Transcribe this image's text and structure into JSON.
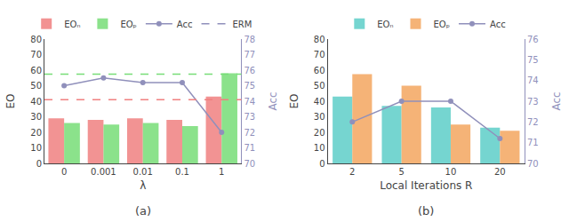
{
  "chart_data": [
    {
      "type": "bar",
      "title": "(a)",
      "x_label": "λ",
      "y_label": "EO",
      "y2_label": "Acc",
      "categories": [
        "0",
        "0.001",
        "0.01",
        "0.1",
        "1"
      ],
      "series": [
        {
          "name": "EOₙ",
          "color": "#f08080",
          "values": [
            29,
            28,
            29,
            28,
            43
          ]
        },
        {
          "name": "EOₚ",
          "color": "#77dd77",
          "values": [
            26,
            25,
            26,
            24,
            58
          ]
        },
        {
          "name": "Acc",
          "type": "line",
          "axis": "y2",
          "color": "#9090bb",
          "marker": "circle",
          "values": [
            75.0,
            75.5,
            75.2,
            75.2,
            72.0
          ]
        }
      ],
      "reference_lines": {
        "name": "ERM",
        "color": "#9090bb",
        "line_style": "dashed",
        "lines": [
          {
            "value": 41,
            "color": "#f08080"
          },
          {
            "value": 57.5,
            "color": "#77dd77"
          }
        ]
      },
      "ylim": [
        0,
        80
      ],
      "yticks": [
        0,
        10,
        20,
        30,
        40,
        50,
        60,
        70,
        80
      ],
      "y2lim": [
        70,
        78
      ],
      "y2ticks": [
        70,
        71,
        72,
        73,
        74,
        75,
        76,
        77,
        78
      ],
      "grid": false,
      "legend": "top"
    },
    {
      "type": "bar",
      "title": "(b)",
      "x_label": "Local Iterations R",
      "y_label": "EO",
      "y2_label": "Acc",
      "categories": [
        "2",
        "5",
        "10",
        "20"
      ],
      "series": [
        {
          "name": "EOₙ",
          "color": "#5ecec8",
          "values": [
            43,
            37,
            36,
            23
          ]
        },
        {
          "name": "EOₚ",
          "color": "#f4a660",
          "values": [
            57.5,
            50,
            25,
            21
          ]
        },
        {
          "name": "Acc",
          "type": "line",
          "axis": "y2",
          "color": "#9090bb",
          "marker": "circle",
          "values": [
            72.0,
            73.0,
            73.0,
            71.2
          ]
        }
      ],
      "ylim": [
        0,
        80
      ],
      "yticks": [
        0,
        10,
        20,
        30,
        40,
        50,
        60,
        70,
        80
      ],
      "y2lim": [
        70,
        76
      ],
      "y2ticks": [
        70,
        71,
        72,
        73,
        74,
        75,
        76
      ],
      "grid": false,
      "legend": "top"
    }
  ]
}
